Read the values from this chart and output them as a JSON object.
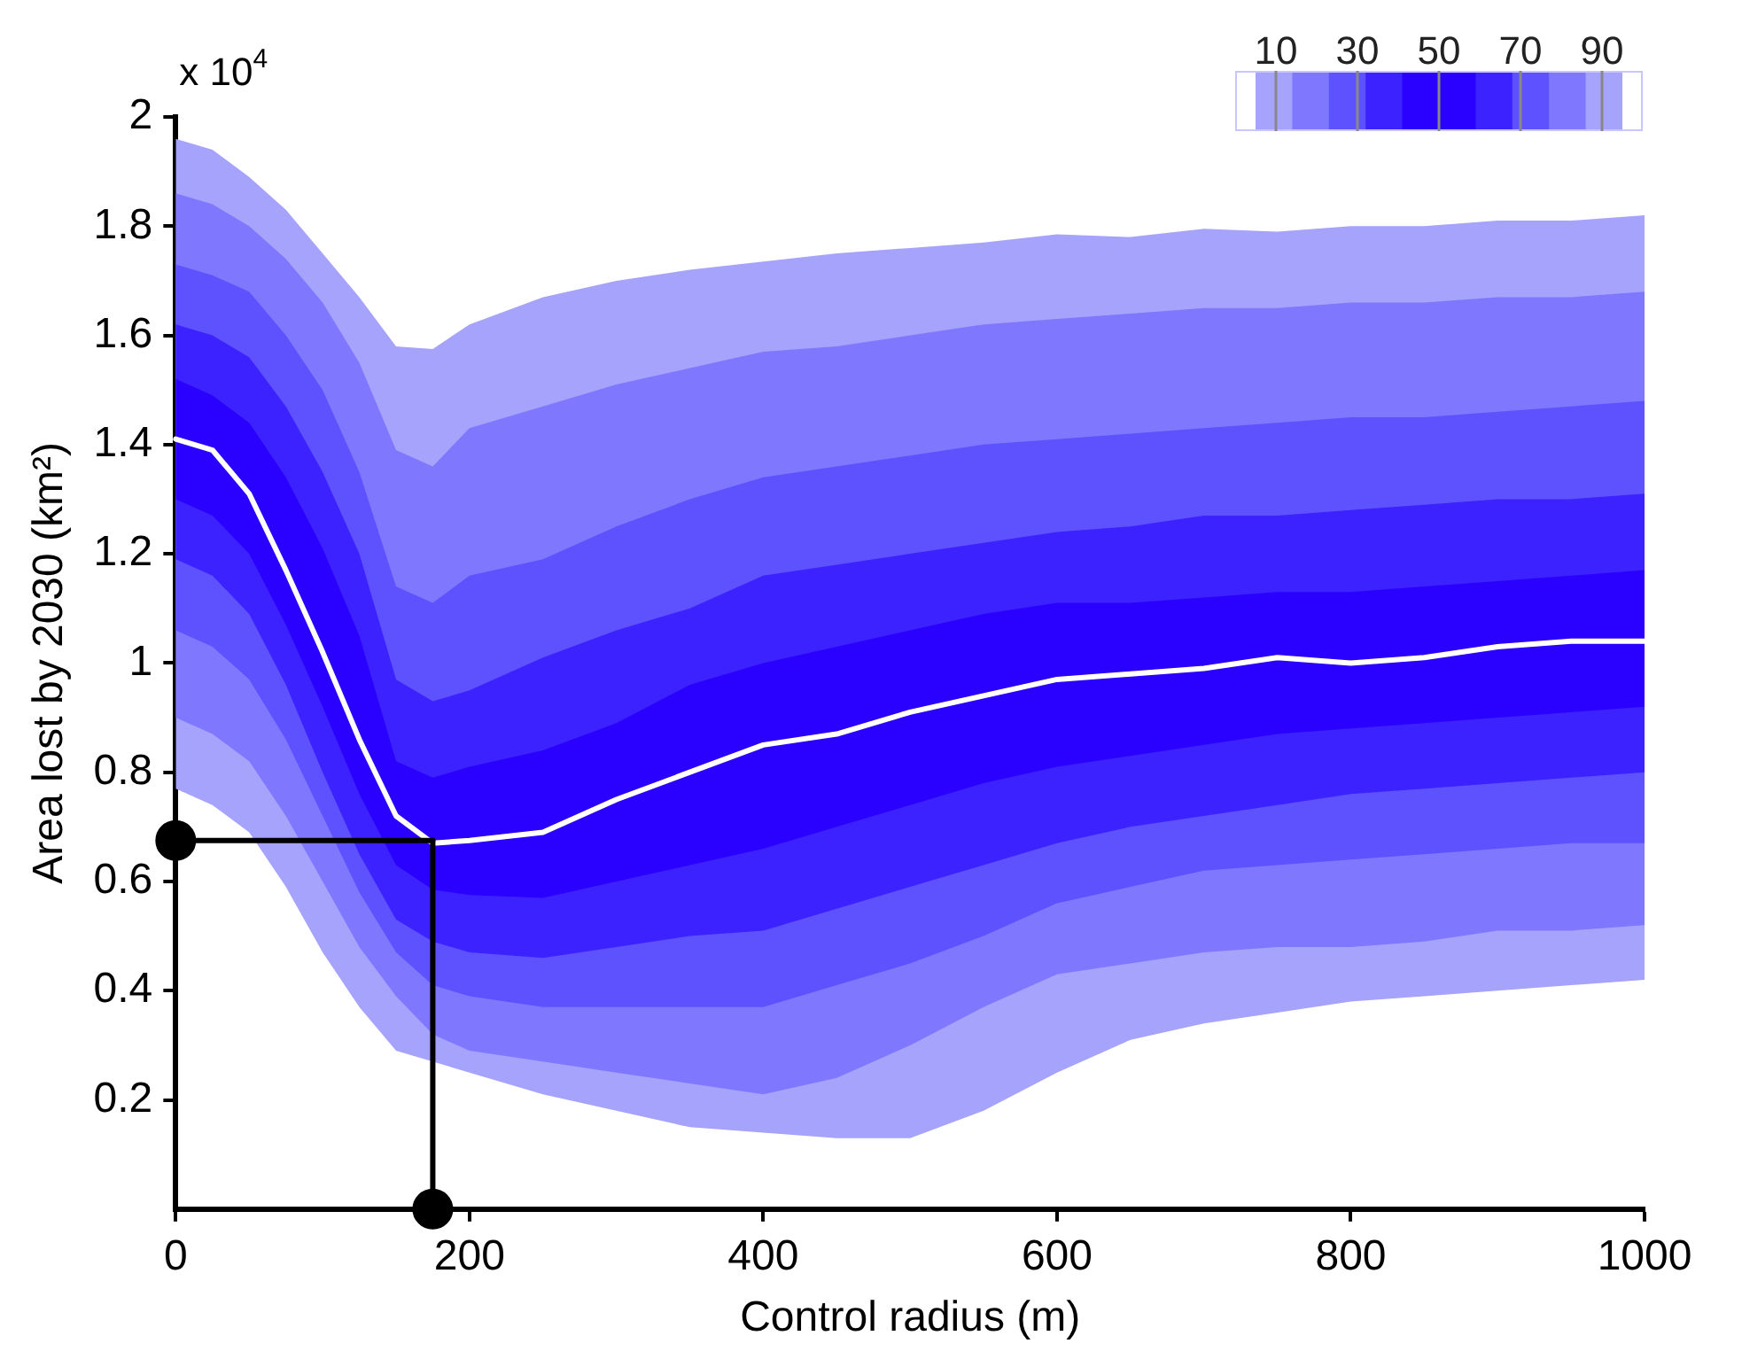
{
  "chart_data": {
    "type": "area",
    "xlabel": "Control radius (m)",
    "ylabel": "Area lost by 2030 (km²)",
    "x": [
      0,
      25,
      50,
      75,
      100,
      125,
      150,
      175,
      200,
      250,
      300,
      350,
      400,
      450,
      500,
      550,
      600,
      650,
      700,
      750,
      800,
      850,
      900,
      950,
      1000
    ],
    "xlim": [
      0,
      1000
    ],
    "xticks": [
      0,
      200,
      400,
      600,
      800,
      1000
    ],
    "ylim": [
      0,
      2
    ],
    "yticks": [
      0.2,
      0.4,
      0.6,
      0.8,
      1,
      1.2,
      1.4,
      1.6,
      1.8,
      2
    ],
    "clim": [
      0,
      100
    ],
    "cticks": [
      10,
      30,
      50,
      70,
      90
    ],
    "grid": false,
    "legend": false,
    "annotations": [
      "x 10$^{4}$"
    ],
    "series": [
      {
        "type": "area",
        "color": "#a6a3fc",
        "values": [
          null,
          null,
          null,
          null,
          null,
          null,
          null,
          null,
          null,
          null,
          null,
          null,
          null,
          null,
          null,
          null,
          null,
          null,
          null,
          null,
          null,
          null,
          null,
          null,
          null
        ],
        "lower": [
          0.77,
          0.74,
          0.69,
          0.59,
          0.47,
          0.37,
          0.29,
          0.27,
          0.25,
          0.21,
          0.18,
          0.15,
          0.14,
          0.13,
          0.13,
          0.18,
          0.25,
          0.31,
          0.34,
          0.36,
          0.38,
          0.39,
          0.4,
          0.41,
          0.42
        ],
        "upper": [
          1.96,
          1.94,
          1.89,
          1.83,
          1.75,
          1.67,
          1.58,
          1.575,
          1.62,
          1.67,
          1.7,
          1.72,
          1.735,
          1.75,
          1.76,
          1.77,
          1.785,
          1.78,
          1.795,
          1.79,
          1.8,
          1.8,
          1.81,
          1.81,
          1.82
        ]
      },
      {
        "type": "area",
        "color": "#7f78ff",
        "values": [
          null,
          null,
          null,
          null,
          null,
          null,
          null,
          null,
          null,
          null,
          null,
          null,
          null,
          null,
          null,
          null,
          null,
          null,
          null,
          null,
          null,
          null,
          null,
          null,
          null
        ],
        "lower": [
          0.9,
          0.87,
          0.82,
          0.72,
          0.6,
          0.48,
          0.39,
          0.32,
          0.29,
          0.27,
          0.25,
          0.23,
          0.21,
          0.24,
          0.3,
          0.37,
          0.43,
          0.45,
          0.47,
          0.48,
          0.48,
          0.49,
          0.51,
          0.51,
          0.52
        ],
        "upper": [
          1.86,
          1.84,
          1.8,
          1.74,
          1.66,
          1.55,
          1.39,
          1.36,
          1.43,
          1.47,
          1.51,
          1.54,
          1.57,
          1.58,
          1.6,
          1.62,
          1.63,
          1.64,
          1.65,
          1.65,
          1.66,
          1.66,
          1.67,
          1.67,
          1.68
        ]
      },
      {
        "type": "area",
        "color": "#5e52ff",
        "values": [
          null,
          null,
          null,
          null,
          null,
          null,
          null,
          null,
          null,
          null,
          null,
          null,
          null,
          null,
          null,
          null,
          null,
          null,
          null,
          null,
          null,
          null,
          null,
          null,
          null
        ],
        "lower": [
          1.06,
          1.03,
          0.97,
          0.86,
          0.72,
          0.58,
          0.47,
          0.41,
          0.39,
          0.37,
          0.37,
          0.37,
          0.37,
          0.41,
          0.45,
          0.5,
          0.56,
          0.59,
          0.62,
          0.63,
          0.64,
          0.65,
          0.66,
          0.67,
          0.67
        ],
        "upper": [
          1.73,
          1.71,
          1.68,
          1.6,
          1.5,
          1.35,
          1.14,
          1.11,
          1.16,
          1.19,
          1.25,
          1.3,
          1.34,
          1.36,
          1.38,
          1.4,
          1.41,
          1.42,
          1.43,
          1.44,
          1.45,
          1.45,
          1.46,
          1.47,
          1.48
        ]
      },
      {
        "type": "area",
        "color": "#3c22ff",
        "values": [
          null,
          null,
          null,
          null,
          null,
          null,
          null,
          null,
          null,
          null,
          null,
          null,
          null,
          null,
          null,
          null,
          null,
          null,
          null,
          null,
          null,
          null,
          null,
          null,
          null
        ],
        "lower": [
          1.19,
          1.16,
          1.09,
          0.96,
          0.8,
          0.65,
          0.53,
          0.49,
          0.47,
          0.46,
          0.48,
          0.5,
          0.51,
          0.55,
          0.59,
          0.63,
          0.67,
          0.7,
          0.72,
          0.74,
          0.76,
          0.77,
          0.78,
          0.79,
          0.8
        ],
        "upper": [
          1.62,
          1.6,
          1.56,
          1.47,
          1.35,
          1.2,
          0.97,
          0.93,
          0.95,
          1.01,
          1.06,
          1.1,
          1.16,
          1.18,
          1.2,
          1.22,
          1.24,
          1.25,
          1.27,
          1.27,
          1.28,
          1.29,
          1.3,
          1.3,
          1.31
        ]
      },
      {
        "type": "area",
        "color": "#2a00ff",
        "values": [
          null,
          null,
          null,
          null,
          null,
          null,
          null,
          null,
          null,
          null,
          null,
          null,
          null,
          null,
          null,
          null,
          null,
          null,
          null,
          null,
          null,
          null,
          null,
          null,
          null
        ],
        "lower": [
          1.3,
          1.27,
          1.2,
          1.07,
          0.92,
          0.76,
          0.63,
          0.585,
          0.575,
          0.57,
          0.6,
          0.63,
          0.66,
          0.7,
          0.74,
          0.78,
          0.81,
          0.83,
          0.85,
          0.87,
          0.88,
          0.89,
          0.9,
          0.91,
          0.92
        ],
        "upper": [
          1.52,
          1.49,
          1.44,
          1.34,
          1.21,
          1.05,
          0.82,
          0.79,
          0.81,
          0.84,
          0.89,
          0.96,
          1,
          1.03,
          1.06,
          1.09,
          1.11,
          1.11,
          1.12,
          1.13,
          1.13,
          1.14,
          1.15,
          1.16,
          1.17
        ]
      },
      {
        "type": "line",
        "color": "#ffffff",
        "marker": "none",
        "line_style": "solid",
        "values": [
          1.41,
          1.39,
          1.31,
          1.17,
          1.02,
          0.86,
          0.72,
          0.67,
          0.675,
          0.69,
          0.75,
          0.8,
          0.85,
          0.87,
          0.91,
          0.94,
          0.97,
          0.98,
          0.99,
          1.01,
          1,
          1.01,
          1.03,
          1.04,
          1.04
        ]
      },
      {
        "type": "scatter",
        "color": "#000000",
        "marker": "circle",
        "x": [
          0,
          175
        ],
        "values": [
          0.675,
          0
        ]
      }
    ],
    "ref_lines": [
      {
        "axis": "y",
        "value": 0.675,
        "color": "#000000"
      },
      {
        "axis": "x",
        "value": 175,
        "color": "#000000"
      }
    ]
  }
}
